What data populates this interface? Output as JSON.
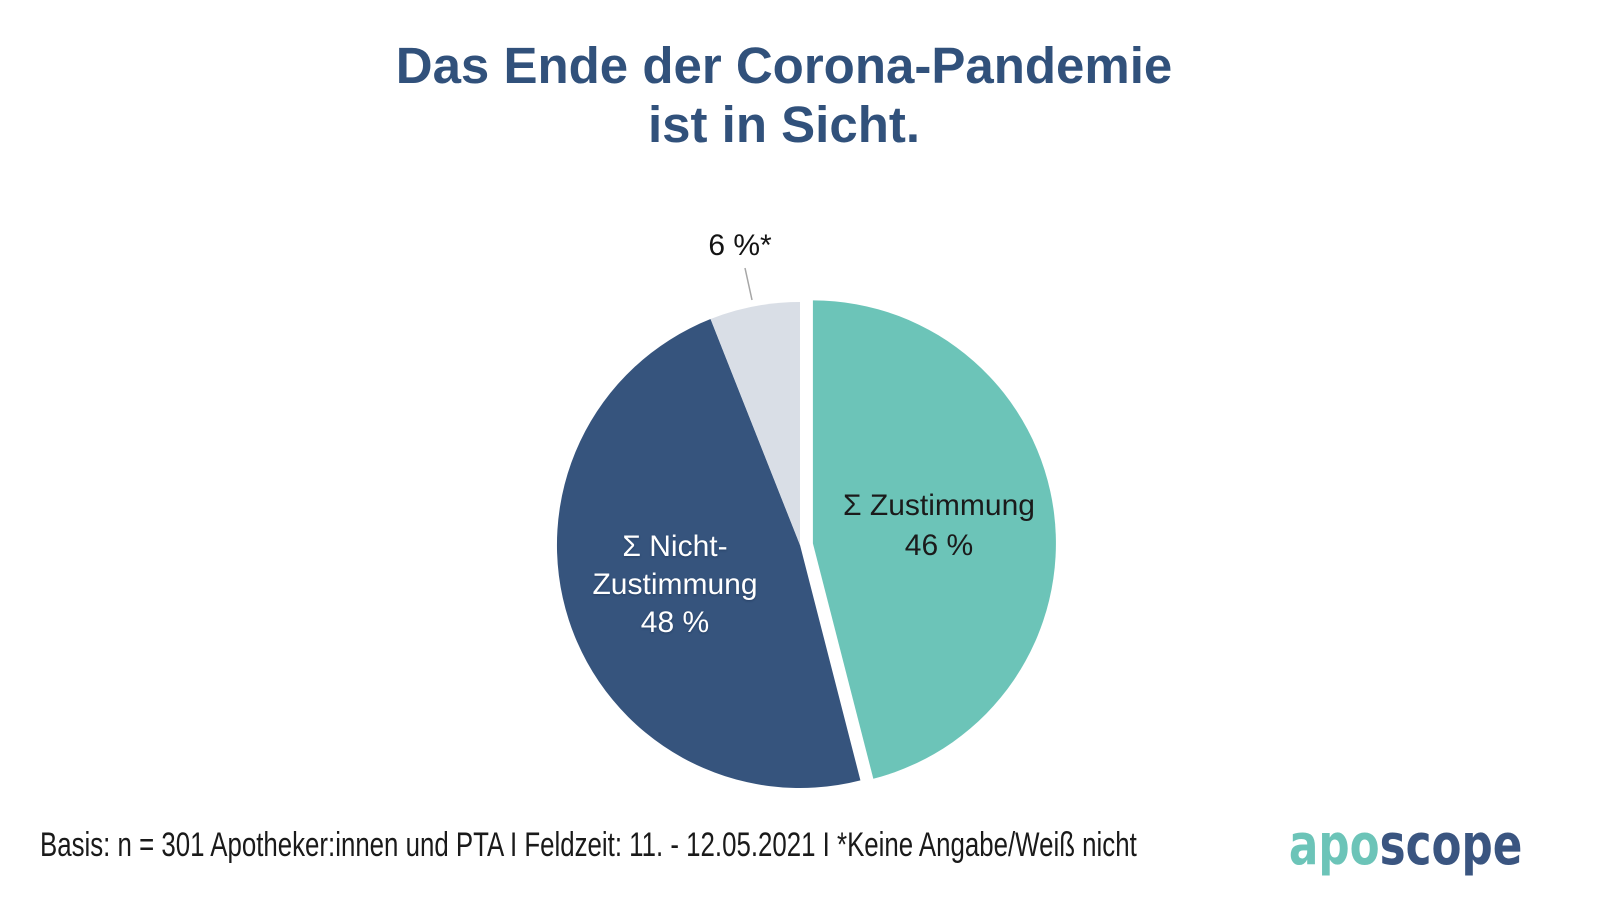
{
  "title": {
    "line1": "Das Ende der Corona-Pandemie",
    "line2": "ist in Sicht."
  },
  "chart_data": {
    "type": "pie",
    "title": "Das Ende der Corona-Pandemie ist in Sicht.",
    "start_angle_deg": 0,
    "direction": "clockwise",
    "labels_inside": true,
    "legend": "none",
    "slices": [
      {
        "id": "zustimmung",
        "label": "Σ Zustimmung",
        "value": 46,
        "unit": "%",
        "color": "#6cc4b8",
        "exploded": true,
        "text_color": "#1b1b1b"
      },
      {
        "id": "nicht-zustimmung",
        "label": "Σ Nicht-Zustimmung",
        "value": 48,
        "unit": "%",
        "color": "#36547d",
        "exploded": false,
        "text_color": "#ffffff"
      },
      {
        "id": "keine-angabe",
        "label": "Keine Angabe/Weiß nicht",
        "value": 6,
        "unit": "%",
        "color": "#d9dee6",
        "exploded": false,
        "callout_label": "6 %*"
      }
    ],
    "footnote": "*Keine Angabe/Weiß nicht"
  },
  "chart_labels": {
    "zustimmung_line1": "Σ Zustimmung",
    "zustimmung_line2": "46 %",
    "nicht_line1": "Σ Nicht-",
    "nicht_line2": "Zustimmung",
    "nicht_line3": "48 %",
    "callout": "6 %*"
  },
  "footer": {
    "text": "Basis: n = 301 Apotheker:innen und PTA I Feldzeit: 11. - 12.05.2021 I *Keine Angabe/Weiß nicht"
  },
  "logo": {
    "part1": "apo",
    "part2": "scope"
  },
  "colors": {
    "title": "#31517b",
    "teal": "#6cc4b8",
    "dark_blue": "#36547d",
    "light_gray": "#d9dee6",
    "logo_apo": "#6cc4b8",
    "logo_scope": "#3a5580"
  }
}
